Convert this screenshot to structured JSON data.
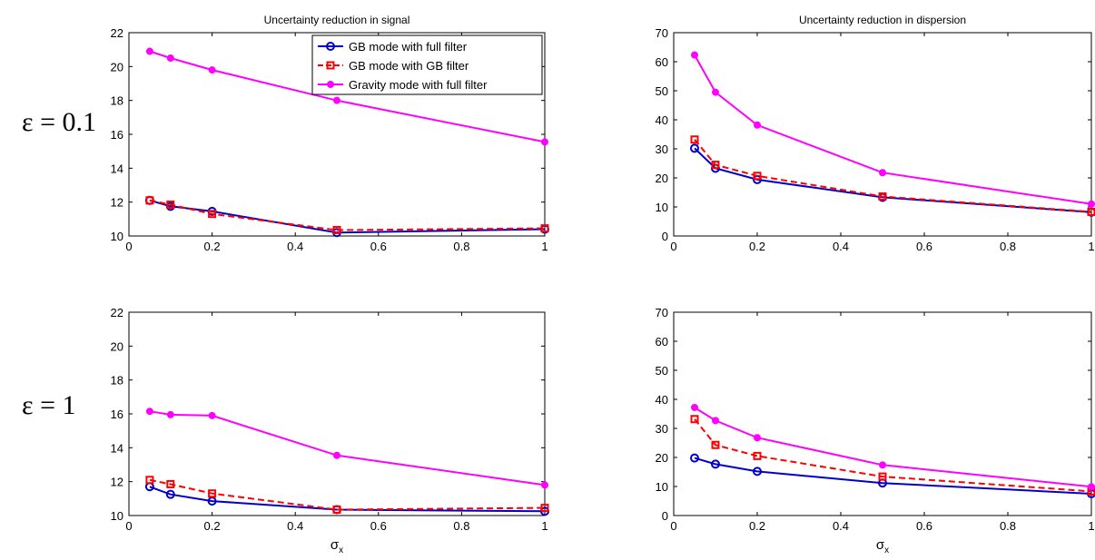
{
  "row_labels": [
    "ε = 0.1",
    "ε = 1"
  ],
  "legend": {
    "position": "top-right",
    "entries": [
      {
        "label": "GB mode with full filter",
        "color": "#0000cc",
        "dash": "solid",
        "marker": "circle"
      },
      {
        "label": "GB mode with GB filter",
        "color": "#ff0000",
        "dash": "dashed",
        "marker": "square"
      },
      {
        "label": "Gravity mode with full filter",
        "color": "#ff00ff",
        "dash": "solid",
        "marker": "dot"
      }
    ]
  },
  "chart_data": [
    {
      "type": "line",
      "title": "Uncertainty reduction in signal",
      "xlabel": "",
      "ylabel": "",
      "xlim": [
        0,
        1
      ],
      "ylim": [
        10,
        22
      ],
      "xticks": [
        "0",
        "0.2",
        "0.4",
        "0.6",
        "0.8",
        "1"
      ],
      "yticks": [
        "10",
        "12",
        "14",
        "16",
        "18",
        "20",
        "22"
      ],
      "x": [
        0.05,
        0.1,
        0.2,
        0.5,
        1
      ],
      "series": [
        {
          "name": "GB mode with full filter",
          "values": [
            12.1,
            11.75,
            11.45,
            10.2,
            10.4
          ]
        },
        {
          "name": "GB mode with GB filter",
          "values": [
            12.1,
            11.85,
            11.3,
            10.35,
            10.45
          ]
        },
        {
          "name": "Gravity mode with full filter",
          "values": [
            20.9,
            20.5,
            19.8,
            18.0,
            15.55
          ]
        }
      ],
      "grid": false
    },
    {
      "type": "line",
      "title": "Uncertainty reduction in dispersion",
      "xlabel": "",
      "ylabel": "",
      "xlim": [
        0,
        1
      ],
      "ylim": [
        0,
        70
      ],
      "xticks": [
        "0",
        "0.2",
        "0.4",
        "0.6",
        "0.8",
        "1"
      ],
      "yticks": [
        "0",
        "10",
        "20",
        "30",
        "40",
        "50",
        "60",
        "70"
      ],
      "x": [
        0.05,
        0.1,
        0.2,
        0.5,
        1
      ],
      "series": [
        {
          "name": "GB mode with full filter",
          "values": [
            30.2,
            23.3,
            19.4,
            13.3,
            8.2
          ]
        },
        {
          "name": "GB mode with GB filter",
          "values": [
            33.2,
            24.5,
            20.7,
            13.6,
            8.3
          ]
        },
        {
          "name": "Gravity mode with full filter",
          "values": [
            62.3,
            49.5,
            38.2,
            21.8,
            11.0
          ]
        }
      ],
      "grid": false
    },
    {
      "type": "line",
      "title": "",
      "xlabel": "σx",
      "ylabel": "",
      "xlim": [
        0,
        1
      ],
      "ylim": [
        10,
        22
      ],
      "xticks": [
        "0",
        "0.2",
        "0.4",
        "0.6",
        "0.8",
        "1"
      ],
      "yticks": [
        "10",
        "12",
        "14",
        "16",
        "18",
        "20",
        "22"
      ],
      "x": [
        0.05,
        0.1,
        0.2,
        0.5,
        1
      ],
      "series": [
        {
          "name": "GB mode with full filter",
          "values": [
            11.7,
            11.25,
            10.85,
            10.35,
            10.25
          ]
        },
        {
          "name": "GB mode with GB filter",
          "values": [
            12.1,
            11.85,
            11.3,
            10.35,
            10.45
          ]
        },
        {
          "name": "Gravity mode with full filter",
          "values": [
            16.15,
            15.95,
            15.9,
            13.55,
            11.8
          ]
        }
      ],
      "grid": false
    },
    {
      "type": "line",
      "title": "",
      "xlabel": "σx",
      "ylabel": "",
      "xlim": [
        0,
        1
      ],
      "ylim": [
        0,
        70
      ],
      "xticks": [
        "0",
        "0.2",
        "0.4",
        "0.6",
        "0.8",
        "1"
      ],
      "yticks": [
        "0",
        "10",
        "20",
        "30",
        "40",
        "50",
        "60",
        "70"
      ],
      "x": [
        0.05,
        0.1,
        0.2,
        0.5,
        1
      ],
      "series": [
        {
          "name": "GB mode with full filter",
          "values": [
            19.8,
            17.7,
            15.2,
            11.2,
            7.5
          ]
        },
        {
          "name": "GB mode with GB filter",
          "values": [
            33.2,
            24.3,
            20.5,
            13.4,
            8.3
          ]
        },
        {
          "name": "Gravity mode with full filter",
          "values": [
            37.2,
            32.7,
            26.8,
            17.4,
            9.9
          ]
        }
      ],
      "grid": false
    }
  ]
}
